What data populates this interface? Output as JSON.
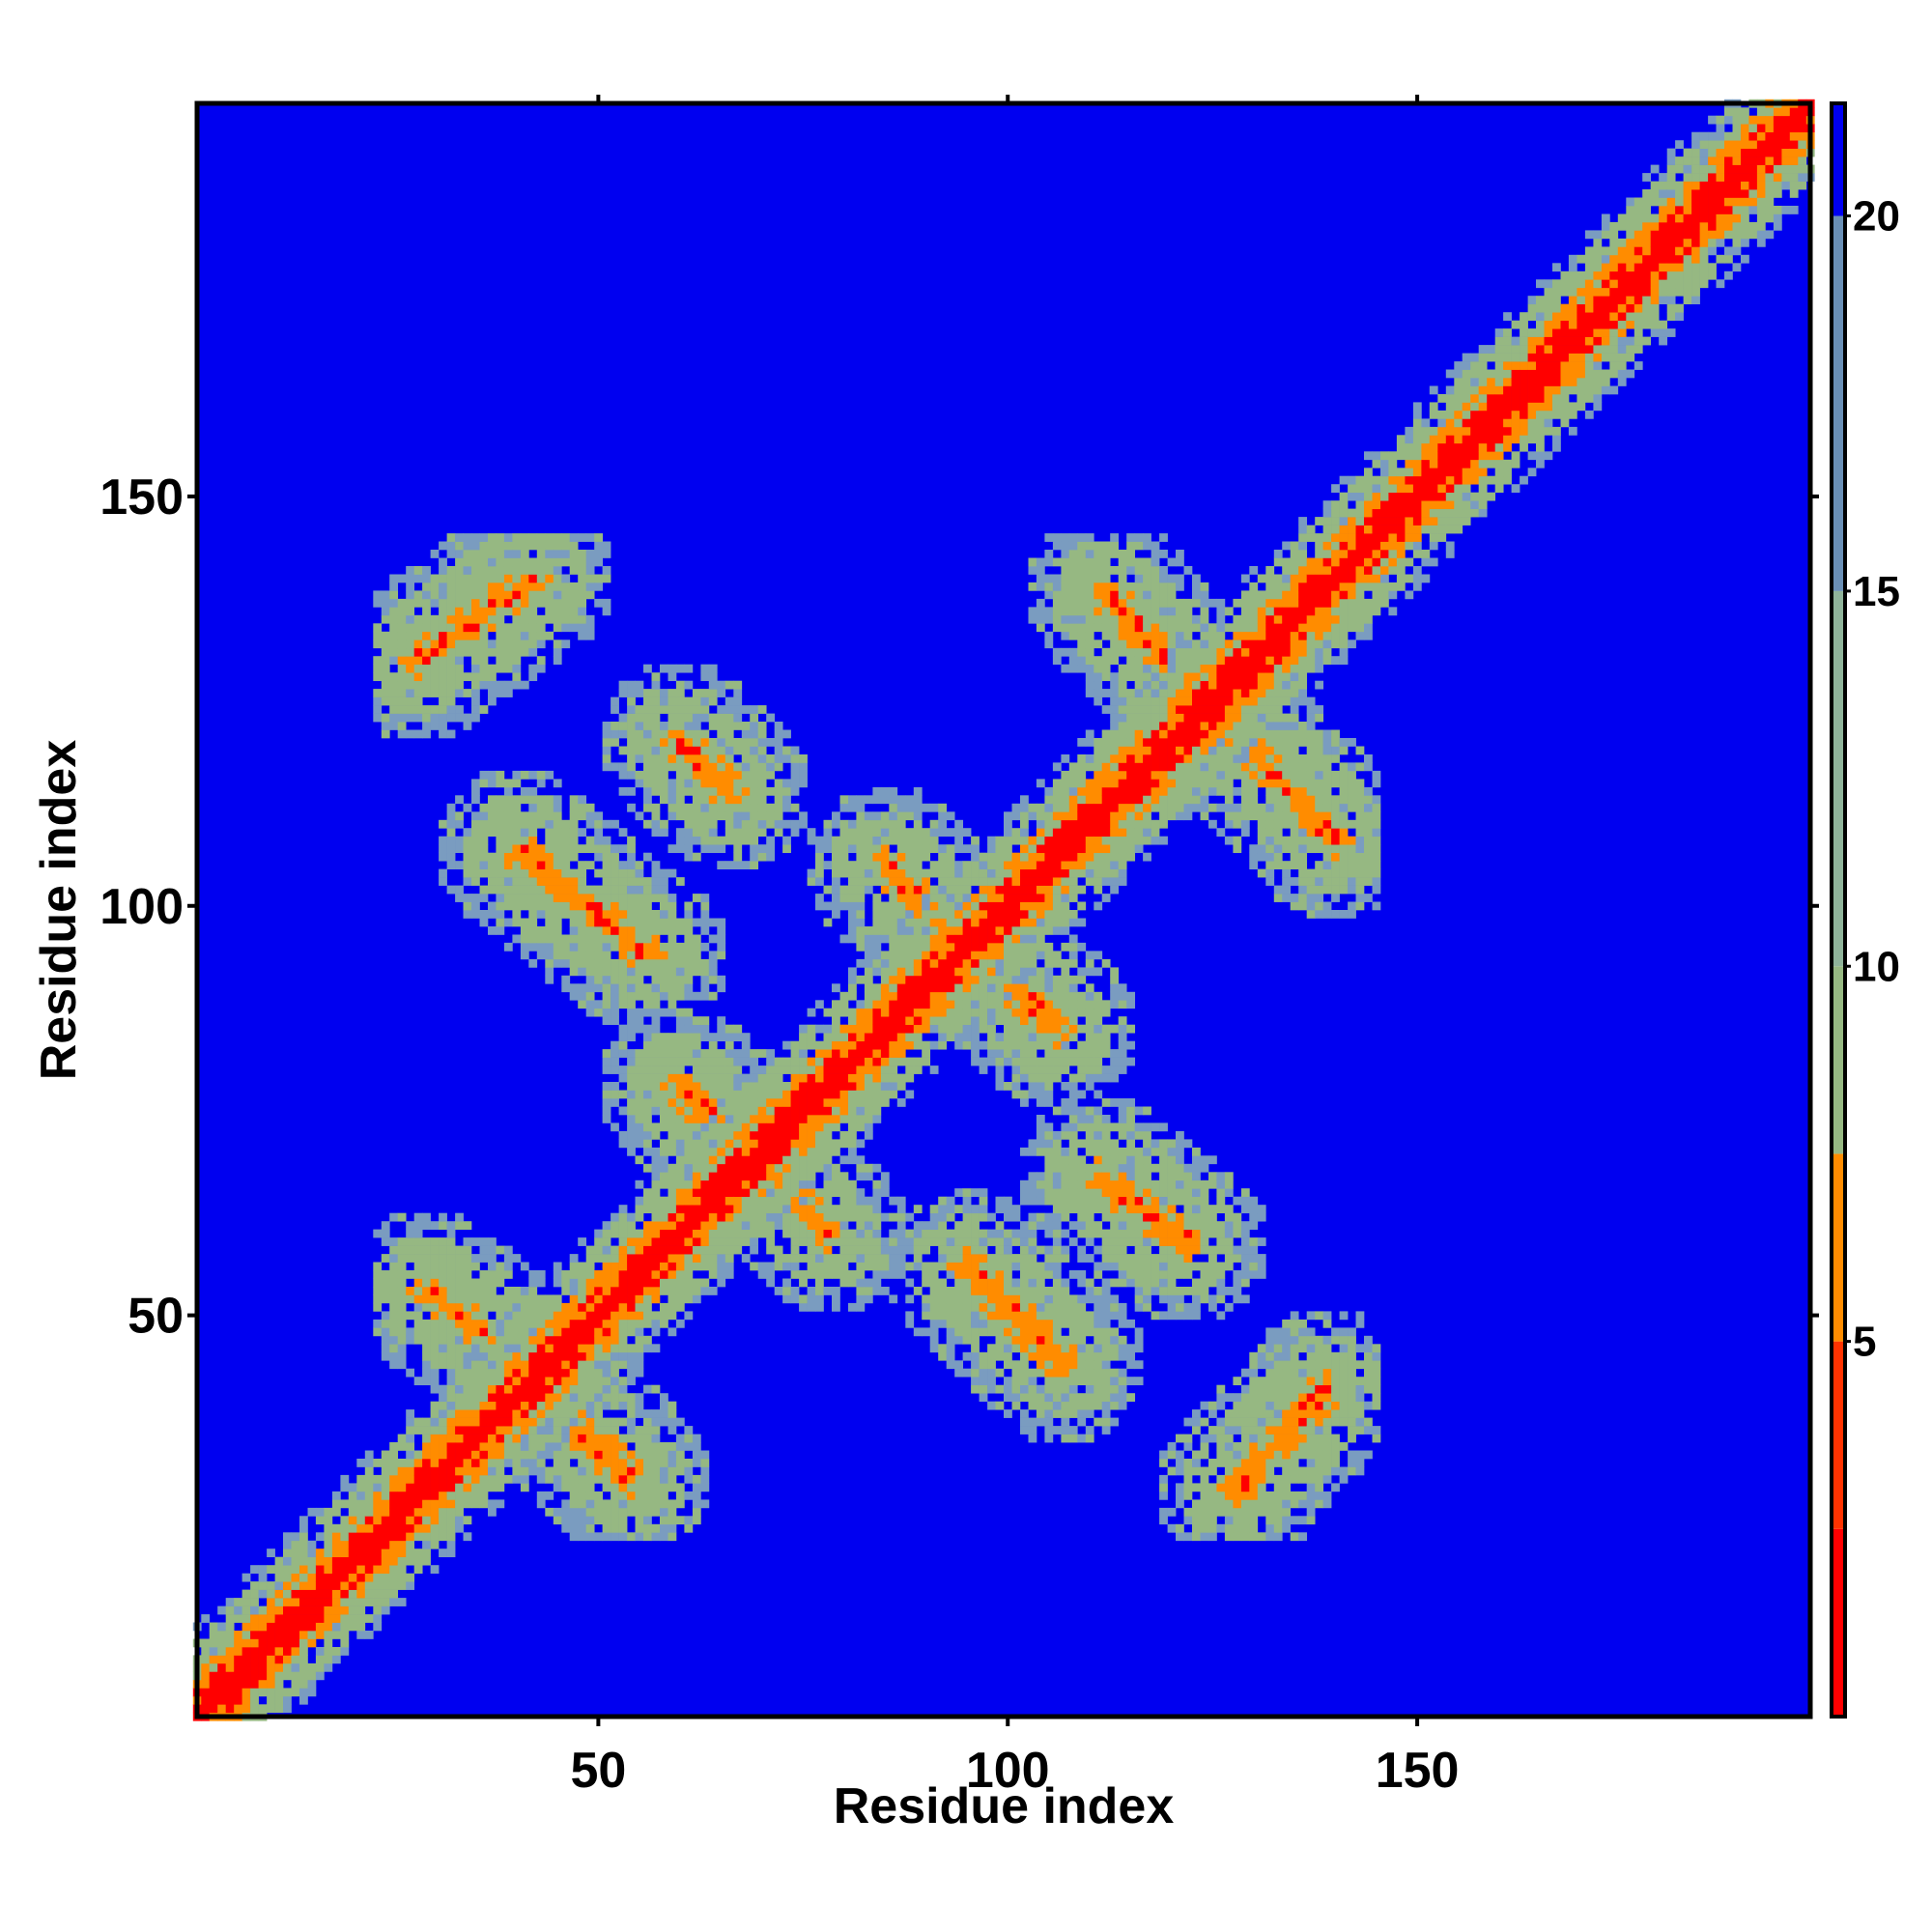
{
  "chart_data": {
    "type": "heatmap",
    "title": "",
    "xlabel": "Residue index",
    "ylabel": "Residue index",
    "xlim": [
      1,
      198
    ],
    "ylim": [
      1,
      198
    ],
    "x_ticks": [
      50,
      100,
      150
    ],
    "x_tick_labels": [
      "50",
      "100",
      "150"
    ],
    "y_ticks": [
      50,
      100,
      150
    ],
    "y_tick_labels": [
      "50",
      "100",
      "150"
    ],
    "colorbar": {
      "ticks": [
        5,
        10,
        15,
        20
      ],
      "tick_labels": [
        "5",
        "10",
        "15",
        "20"
      ],
      "range": [
        0,
        21.5
      ],
      "bands": [
        {
          "from": 0,
          "to": 2.5,
          "color": "#ff0000"
        },
        {
          "from": 2.5,
          "to": 5,
          "color": "#ff3300"
        },
        {
          "from": 5,
          "to": 7.5,
          "color": "#ff8c00"
        },
        {
          "from": 7.5,
          "to": 10,
          "color": "#96b882"
        },
        {
          "from": 10,
          "to": 15,
          "color": "#8fb39a"
        },
        {
          "from": 15,
          "to": 20,
          "color": "#6a8fb5"
        },
        {
          "from": 20,
          "to": 21.5,
          "color": "#0000f0"
        }
      ]
    },
    "colors": {
      "background": "#0000f0",
      "contact": "#ff0000",
      "near": "#ff8c00",
      "mid": "#96b882",
      "far": "#7a9cc0"
    },
    "diagonal_band": {
      "from": 1,
      "to": 198
    },
    "contact_region": {
      "x": [
        23,
        145
      ],
      "y": [
        23,
        145
      ]
    },
    "contact_segments": [
      {
        "x": [
          28,
          42
        ],
        "y": [
          130,
          140
        ],
        "type": "parallel"
      },
      {
        "x": [
          60,
          66
        ],
        "y": [
          120,
          114
        ],
        "type": "anti"
      },
      {
        "x": [
          40,
          56
        ],
        "y": [
          107,
          94
        ],
        "type": "anti"
      },
      {
        "x": [
          85,
          106
        ],
        "y": [
          105,
          85
        ],
        "type": "anti"
      },
      {
        "x": [
          112,
          140
        ],
        "y": [
          138,
          108
        ],
        "type": "anti"
      },
      {
        "x": [
          60,
          78
        ],
        "y": [
          78,
          60
        ],
        "type": "anti"
      },
      {
        "x": [
          111,
          122
        ],
        "y": [
          67,
          59
        ],
        "type": "anti"
      },
      {
        "x": [
          95,
          107
        ],
        "y": [
          56,
          44
        ],
        "type": "anti"
      },
      {
        "x": [
          29,
          36
        ],
        "y": [
          53,
          48
        ],
        "type": "anti"
      },
      {
        "x": [
          48,
          54
        ],
        "y": [
          36,
          30
        ],
        "type": "anti"
      },
      {
        "x": [
          128,
          139
        ],
        "y": [
          29,
          41
        ],
        "type": "parallel"
      }
    ]
  }
}
